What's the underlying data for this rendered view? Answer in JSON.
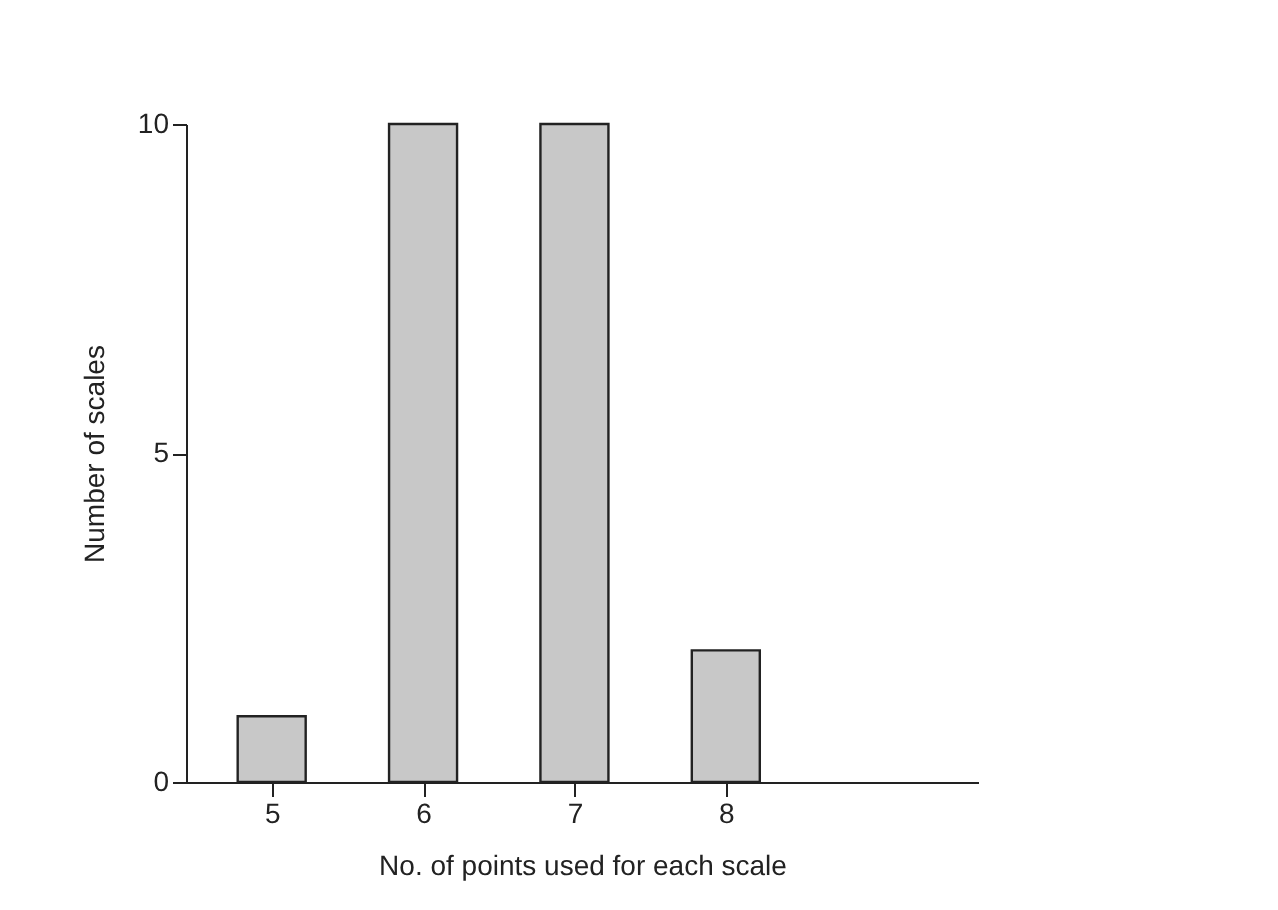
{
  "chart_data": {
    "type": "bar",
    "xlabel": "No. of points used for each scale",
    "ylabel": "Number of scales",
    "categories": [
      "5",
      "6",
      "7",
      "8"
    ],
    "values": [
      1,
      10,
      10,
      2
    ],
    "color": "#c8c8c8",
    "ylim": [
      0,
      10
    ],
    "yticks": [
      0,
      5,
      10
    ],
    "grid": false
  }
}
